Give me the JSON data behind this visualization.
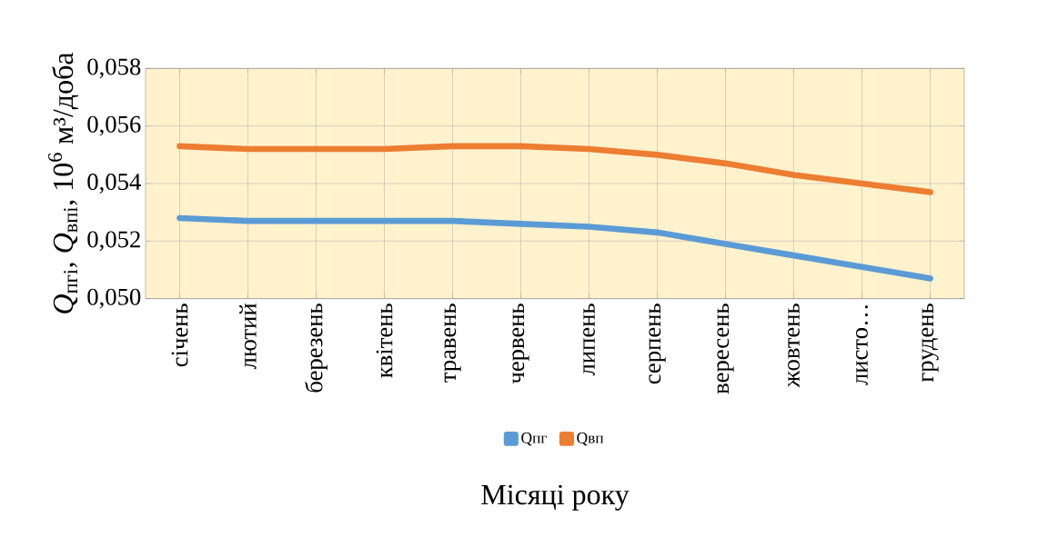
{
  "chart_data": {
    "type": "line",
    "categories": [
      "січень",
      "лютий",
      "березень",
      "квітень",
      "травень",
      "червень",
      "липень",
      "серпень",
      "вересень",
      "жовтень",
      "листо…",
      "грудень"
    ],
    "series": [
      {
        "name": "Qпг",
        "color": "#5b9bd5",
        "values": [
          0.0528,
          0.0527,
          0.0527,
          0.0527,
          0.0527,
          0.0526,
          0.0525,
          0.0523,
          0.0519,
          0.0515,
          0.0511,
          0.0507
        ]
      },
      {
        "name": "Qвп",
        "color": "#ed7d31",
        "values": [
          0.0553,
          0.0552,
          0.0552,
          0.0552,
          0.0553,
          0.0553,
          0.0552,
          0.055,
          0.0547,
          0.0543,
          0.054,
          0.0537
        ]
      }
    ],
    "xlabel": "Місяці року",
    "ylabel": "*Q*$_{пгі}$, *Q*$_{впі}$, 10$^{6}$ м³/доба",
    "ylim": [
      0.05,
      0.058
    ],
    "yticks": [
      {
        "value": 0.05,
        "label": "0,050"
      },
      {
        "value": 0.052,
        "label": "0,052"
      },
      {
        "value": 0.054,
        "label": "0,054"
      },
      {
        "value": 0.056,
        "label": "0,056"
      },
      {
        "value": 0.058,
        "label": "0,058"
      }
    ],
    "grid": true,
    "legend": "bottom",
    "marker": "none",
    "line_style": "solid"
  }
}
